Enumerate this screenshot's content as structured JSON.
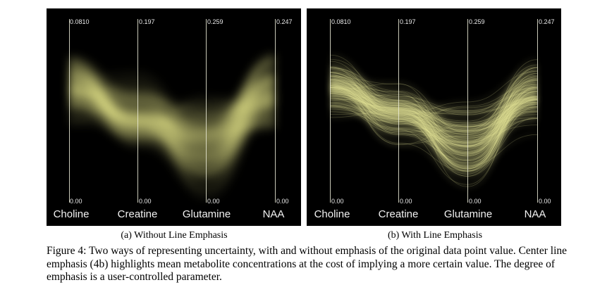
{
  "panels": [
    {
      "subcaption": "(a) Without Line Emphasis",
      "axes": [
        {
          "name": "Choline",
          "max": "0.0810",
          "min": "0.00"
        },
        {
          "name": "Creatine",
          "max": "0.197",
          "min": "0.00"
        },
        {
          "name": "Glutamine",
          "max": "0.259",
          "min": "0.00"
        },
        {
          "name": "NAA",
          "max": "0.247",
          "min": "0.00"
        }
      ]
    },
    {
      "subcaption": "(b) With Line Emphasis",
      "axes": [
        {
          "name": "Choline",
          "max": "0.0810",
          "min": "0.00"
        },
        {
          "name": "Creatine",
          "max": "0.197",
          "min": "0.00"
        },
        {
          "name": "Glutamine",
          "max": "0.259",
          "min": "0.00"
        },
        {
          "name": "NAA",
          "max": "0.247",
          "min": "0.00"
        }
      ]
    }
  ],
  "caption": "Figure 4: Two ways of representing uncertainty, with and without emphasis of the original data point value. Center line emphasis (4b) highlights mean metabolite concentrations at the cost of implying a more certain value. The degree of emphasis is a user-controlled parameter.",
  "colors": {
    "band": "#e8e89a",
    "background": "#000000",
    "axis": "#ebebd7"
  }
}
